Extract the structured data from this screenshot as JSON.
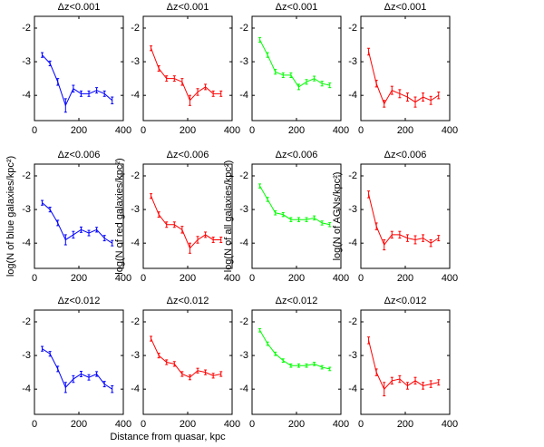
{
  "chart_data": [
    {
      "type": "line",
      "title": "Δz<0.001",
      "x": [
        35,
        70,
        105,
        140,
        175,
        210,
        245,
        280,
        315,
        350
      ],
      "series": [
        {
          "color": "#0000ff",
          "values": [
            -2.8,
            -3.05,
            -3.6,
            -4.3,
            -3.8,
            -3.95,
            -3.95,
            -3.85,
            -3.95,
            -4.15
          ],
          "errors": [
            0.07,
            0.07,
            0.1,
            0.2,
            0.1,
            0.08,
            0.08,
            0.08,
            0.08,
            0.1
          ]
        }
      ],
      "xlim": [
        0,
        400
      ],
      "xticks": [
        0,
        200,
        400
      ],
      "ylim": [
        -4.75,
        -1.65
      ],
      "yticks": [
        -4,
        -3,
        -2
      ]
    },
    {
      "type": "line",
      "title": "Δz<0.001",
      "x": [
        35,
        70,
        105,
        140,
        175,
        210,
        245,
        280,
        315,
        350
      ],
      "series": [
        {
          "color": "#ff0000",
          "values": [
            -2.6,
            -3.2,
            -3.5,
            -3.5,
            -3.6,
            -4.15,
            -3.9,
            -3.75,
            -3.95,
            -3.95
          ],
          "errors": [
            0.07,
            0.08,
            0.08,
            0.08,
            0.1,
            0.15,
            0.1,
            0.08,
            0.08,
            0.08
          ]
        }
      ],
      "xlim": [
        0,
        400
      ],
      "xticks": [
        0,
        200,
        400
      ],
      "ylim": [
        -4.75,
        -1.65
      ],
      "yticks": [
        -4,
        -3,
        -2
      ]
    },
    {
      "type": "line",
      "title": "Δz<0.001",
      "x": [
        35,
        70,
        105,
        140,
        175,
        210,
        245,
        280,
        315,
        350
      ],
      "series": [
        {
          "color": "#00ff00",
          "values": [
            -2.35,
            -2.8,
            -3.3,
            -3.4,
            -3.4,
            -3.75,
            -3.6,
            -3.5,
            -3.65,
            -3.7
          ],
          "errors": [
            0.07,
            0.07,
            0.07,
            0.07,
            0.07,
            0.08,
            0.07,
            0.07,
            0.07,
            0.07
          ]
        }
      ],
      "xlim": [
        0,
        400
      ],
      "xticks": [
        0,
        200,
        400
      ],
      "ylim": [
        -4.75,
        -1.65
      ],
      "yticks": [
        -4,
        -3,
        -2
      ]
    },
    {
      "type": "line",
      "title": "Δz<0.001",
      "x": [
        35,
        70,
        105,
        140,
        175,
        210,
        245,
        280,
        315,
        350
      ],
      "series": [
        {
          "color": "#ff0000",
          "values": [
            -2.7,
            -3.65,
            -4.25,
            -3.85,
            -3.95,
            -4.05,
            -4.2,
            -4.05,
            -4.15,
            -4.0
          ],
          "errors": [
            0.1,
            0.1,
            0.1,
            0.12,
            0.12,
            0.12,
            0.15,
            0.12,
            0.12,
            0.1
          ]
        }
      ],
      "xlim": [
        0,
        400
      ],
      "xticks": [
        0,
        200,
        400
      ],
      "ylim": [
        -4.75,
        -1.65
      ],
      "yticks": [
        -4,
        -3,
        -2
      ]
    },
    {
      "type": "line",
      "title": "Δz<0.006",
      "ylabel": "log(N of blue galaxies/kpc²)",
      "x": [
        35,
        70,
        105,
        140,
        175,
        210,
        245,
        280,
        315,
        350
      ],
      "series": [
        {
          "color": "#0000ff",
          "values": [
            -2.8,
            -3.0,
            -3.4,
            -3.9,
            -3.75,
            -3.6,
            -3.7,
            -3.6,
            -3.85,
            -4.0
          ],
          "errors": [
            0.07,
            0.07,
            0.08,
            0.15,
            0.1,
            0.08,
            0.08,
            0.07,
            0.08,
            0.08
          ]
        }
      ],
      "xlim": [
        0,
        400
      ],
      "xticks": [
        0,
        200,
        400
      ],
      "ylim": [
        -4.75,
        -1.65
      ],
      "yticks": [
        -4,
        -3,
        -2
      ]
    },
    {
      "type": "line",
      "title": "Δz<0.006",
      "ylabel": "log(N of red galaxies/kpc²)",
      "x": [
        35,
        70,
        105,
        140,
        175,
        210,
        245,
        280,
        315,
        350
      ],
      "series": [
        {
          "color": "#ff0000",
          "values": [
            -2.6,
            -3.15,
            -3.45,
            -3.45,
            -3.6,
            -4.15,
            -3.9,
            -3.75,
            -3.9,
            -3.9
          ],
          "errors": [
            0.07,
            0.08,
            0.08,
            0.08,
            0.1,
            0.15,
            0.1,
            0.08,
            0.08,
            0.08
          ]
        }
      ],
      "xlim": [
        0,
        400
      ],
      "xticks": [
        0,
        200,
        400
      ],
      "ylim": [
        -4.75,
        -1.65
      ],
      "yticks": [
        -4,
        -3,
        -2
      ]
    },
    {
      "type": "line",
      "title": "Δz<0.006",
      "ylabel": "log(N of all galaxies/kpc²)",
      "x": [
        35,
        70,
        105,
        140,
        175,
        210,
        245,
        280,
        315,
        350
      ],
      "series": [
        {
          "color": "#00ff00",
          "values": [
            -2.3,
            -2.7,
            -3.1,
            -3.15,
            -3.3,
            -3.3,
            -3.3,
            -3.25,
            -3.4,
            -3.45
          ],
          "errors": [
            0.06,
            0.06,
            0.06,
            0.06,
            0.06,
            0.06,
            0.06,
            0.06,
            0.06,
            0.06
          ]
        }
      ],
      "xlim": [
        0,
        400
      ],
      "xticks": [
        0,
        200,
        400
      ],
      "ylim": [
        -4.75,
        -1.65
      ],
      "yticks": [
        -4,
        -3,
        -2
      ]
    },
    {
      "type": "line",
      "title": "Δz<0.006",
      "ylabel": "log(N of AGNs/kpc²)",
      "x": [
        35,
        70,
        105,
        140,
        175,
        210,
        245,
        280,
        315,
        350
      ],
      "series": [
        {
          "color": "#ff0000",
          "values": [
            -2.55,
            -3.5,
            -4.05,
            -3.75,
            -3.75,
            -3.85,
            -3.9,
            -3.85,
            -4.0,
            -3.85
          ],
          "errors": [
            0.1,
            0.1,
            0.15,
            0.1,
            0.1,
            0.1,
            0.12,
            0.1,
            0.1,
            0.08
          ]
        }
      ],
      "xlim": [
        0,
        400
      ],
      "xticks": [
        0,
        200,
        400
      ],
      "ylim": [
        -4.75,
        -1.65
      ],
      "yticks": [
        -4,
        -3,
        -2
      ]
    },
    {
      "type": "line",
      "title": "Δz<0.012",
      "x": [
        35,
        70,
        105,
        140,
        175,
        210,
        245,
        280,
        315,
        350
      ],
      "series": [
        {
          "color": "#0000ff",
          "values": [
            -2.8,
            -2.95,
            -3.4,
            -3.95,
            -3.7,
            -3.55,
            -3.65,
            -3.55,
            -3.85,
            -4.0
          ],
          "errors": [
            0.07,
            0.07,
            0.08,
            0.15,
            0.1,
            0.08,
            0.08,
            0.07,
            0.08,
            0.1
          ]
        }
      ],
      "xlim": [
        0,
        400
      ],
      "xticks": [
        0,
        200,
        400
      ],
      "ylim": [
        -4.75,
        -1.65
      ],
      "yticks": [
        -4,
        -3,
        -2
      ]
    },
    {
      "type": "line",
      "title": "Δz<0.012",
      "xlabel": "Distance from quasar, kpc",
      "x": [
        35,
        70,
        105,
        140,
        175,
        210,
        245,
        280,
        315,
        350
      ],
      "series": [
        {
          "color": "#ff0000",
          "values": [
            -2.5,
            -3.0,
            -3.2,
            -3.25,
            -3.55,
            -3.65,
            -3.45,
            -3.5,
            -3.6,
            -3.55
          ],
          "errors": [
            0.07,
            0.07,
            0.07,
            0.07,
            0.07,
            0.07,
            0.07,
            0.07,
            0.07,
            0.07
          ]
        }
      ],
      "xlim": [
        0,
        400
      ],
      "xticks": [
        0,
        200,
        400
      ],
      "ylim": [
        -4.75,
        -1.65
      ],
      "yticks": [
        -4,
        -3,
        -2
      ]
    },
    {
      "type": "line",
      "title": "Δz<0.012",
      "x": [
        35,
        70,
        105,
        140,
        175,
        210,
        245,
        280,
        315,
        350
      ],
      "series": [
        {
          "color": "#00ff00",
          "values": [
            -2.25,
            -2.65,
            -2.95,
            -3.15,
            -3.3,
            -3.3,
            -3.3,
            -3.25,
            -3.35,
            -3.4
          ],
          "errors": [
            0.05,
            0.05,
            0.05,
            0.05,
            0.05,
            0.05,
            0.05,
            0.05,
            0.05,
            0.05
          ]
        }
      ],
      "xlim": [
        0,
        400
      ],
      "xticks": [
        0,
        200,
        400
      ],
      "ylim": [
        -4.75,
        -1.65
      ],
      "yticks": [
        -4,
        -3,
        -2
      ]
    },
    {
      "type": "line",
      "title": "Δz<0.012",
      "x": [
        35,
        70,
        105,
        140,
        175,
        210,
        245,
        280,
        315,
        350
      ],
      "series": [
        {
          "color": "#ff0000",
          "values": [
            -2.55,
            -3.5,
            -4.0,
            -3.75,
            -3.7,
            -3.9,
            -3.75,
            -3.9,
            -3.85,
            -3.8
          ],
          "errors": [
            0.1,
            0.1,
            0.2,
            0.1,
            0.1,
            0.1,
            0.1,
            0.1,
            0.1,
            0.08
          ]
        }
      ],
      "xlim": [
        0,
        400
      ],
      "xticks": [
        0,
        200,
        400
      ],
      "ylim": [
        -4.75,
        -1.65
      ],
      "yticks": [
        -4,
        -3,
        -2
      ]
    }
  ]
}
